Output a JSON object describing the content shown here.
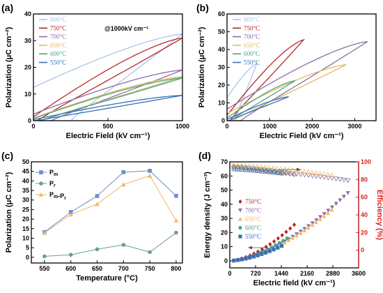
{
  "chart_data": [
    {
      "panel": "(a)",
      "type": "line",
      "subtype": "hysteresis-loop",
      "xlabel": "Electric Field (kV cm⁻¹)",
      "ylabel": "Polarization (μC cm⁻²)",
      "xlim": [
        0,
        1000
      ],
      "ylim": [
        0,
        40
      ],
      "xticks": [
        0,
        500,
        1000
      ],
      "yticks": [
        0,
        10,
        20,
        30,
        40
      ],
      "annotation": "@1000kV cm⁻¹",
      "legend_position": "top-left",
      "series": [
        {
          "name": "800°C",
          "color": "#a9c4ec",
          "Emax": 1000,
          "Pmax": 32.5,
          "Pr": 12.5,
          "coercive_width": 0.25
        },
        {
          "name": "750°C",
          "color": "#b5292f",
          "Emax": 1000,
          "Pmax": 31,
          "Pr": 1.5,
          "coercive_width": 0.03
        },
        {
          "name": "700°C",
          "color": "#8a6ea8",
          "Emax": 1000,
          "Pmax": 19,
          "Pr": 2.5,
          "coercive_width": 0.12
        },
        {
          "name": "650°C",
          "color": "#e6b85c",
          "Emax": 1000,
          "Pmax": 16.5,
          "Pr": 1,
          "coercive_width": 0.05
        },
        {
          "name": "600°C",
          "color": "#4aa588",
          "Emax": 1000,
          "Pmax": 16,
          "Pr": 0.8,
          "coercive_width": 0.05
        },
        {
          "name": "550°C",
          "color": "#3a6fb5",
          "Emax": 1000,
          "Pmax": 9.5,
          "Pr": 0.4,
          "coercive_width": 0.03
        }
      ]
    },
    {
      "panel": "(b)",
      "type": "line",
      "subtype": "hysteresis-loop",
      "xlabel": "Electric Field (kV cm⁻¹)",
      "ylabel": "Polarization (μC cm⁻²)",
      "xlim": [
        0,
        3500
      ],
      "ylim": [
        0,
        60
      ],
      "xticks": [
        0,
        1000,
        2000,
        3000
      ],
      "yticks": [
        0,
        10,
        20,
        30,
        40,
        50,
        60
      ],
      "legend_position": "top-left",
      "series": [
        {
          "name": "800°C",
          "color": "#a9c4ec",
          "Emax": 700,
          "Pmax": 32,
          "Pr": 13,
          "coercive_width": 0.25
        },
        {
          "name": "750°C",
          "color": "#b5292f",
          "Emax": 1800,
          "Pmax": 45.5,
          "Pr": 3,
          "coercive_width": 0.04
        },
        {
          "name": "700°C",
          "color": "#8a6ea8",
          "Emax": 3300,
          "Pmax": 44.5,
          "Pr": 6.5,
          "coercive_width": 0.1
        },
        {
          "name": "650°C",
          "color": "#e6b85c",
          "Emax": 2800,
          "Pmax": 31.5,
          "Pr": 4,
          "coercive_width": 0.05
        },
        {
          "name": "600°C",
          "color": "#4aa588",
          "Emax": 1600,
          "Pmax": 22.5,
          "Pr": 1.5,
          "coercive_width": 0.05
        },
        {
          "name": "550°C",
          "color": "#3a6fb5",
          "Emax": 1450,
          "Pmax": 13.5,
          "Pr": 0.7,
          "coercive_width": 0.03
        }
      ]
    },
    {
      "panel": "(c)",
      "type": "line",
      "xlabel": "Temperature (°C)",
      "ylabel": "Polarization (μC cm⁻²)",
      "x": [
        550,
        600,
        650,
        700,
        750,
        800
      ],
      "xlim": [
        525,
        812
      ],
      "ylim": [
        -3,
        50
      ],
      "xticks": [
        550,
        600,
        650,
        700,
        750,
        800
      ],
      "yticks": [
        0,
        5,
        10,
        15,
        20,
        25,
        30,
        35,
        40,
        45,
        50
      ],
      "legend_position": "top-left",
      "series": [
        {
          "name": "Pm",
          "marker": "square",
          "color": "#6b8fc7",
          "values": [
            13.2,
            23.7,
            32.1,
            44.6,
            45.3,
            32.2
          ]
        },
        {
          "name": "Pr",
          "marker": "circle",
          "color": "#6a9f8c",
          "values": [
            0.5,
            1.3,
            4.2,
            6.5,
            2.7,
            12.9
          ]
        },
        {
          "name": "Pm-Pr",
          "marker": "triangle",
          "color": "#f4b56b",
          "values": [
            12.8,
            22.4,
            27.9,
            38.1,
            42.7,
            19.3
          ]
        }
      ]
    },
    {
      "panel": "(d)",
      "type": "scatter",
      "xlabel": "Electric field (kV cm⁻¹)",
      "ylabel": "Energy density (J cm⁻³)",
      "y2label": "Efficiency (%)",
      "xlim": [
        0,
        3600
      ],
      "ylim": [
        -5,
        70
      ],
      "y2lim": [
        -20,
        100
      ],
      "xticks": [
        0,
        720,
        1440,
        2160,
        2880,
        3600
      ],
      "yticks": [
        0,
        10,
        20,
        30,
        40,
        50,
        60,
        70
      ],
      "y2ticks": [
        0,
        20,
        40,
        60,
        80,
        100
      ],
      "legend_position": "middle-left",
      "series": [
        {
          "name": "750°C",
          "marker": "diamond",
          "color": "#b5292f",
          "Emax": 1800,
          "Wmax": 25.5,
          "eff_start": 94,
          "eff_end": 86
        },
        {
          "name": "700°C",
          "marker": "triangle-down",
          "color": "#8a6ea8",
          "Emax": 3300,
          "Wmax": 48,
          "eff_start": 93,
          "eff_end": 79
        },
        {
          "name": "650°C",
          "marker": "triangle",
          "color": "#f4b56b",
          "Emax": 2850,
          "Wmax": 36,
          "eff_start": 97,
          "eff_end": 85
        },
        {
          "name": "600°C",
          "marker": "circle",
          "color": "#4aa588",
          "Emax": 1600,
          "Wmax": 16,
          "eff_start": 95,
          "eff_end": 88
        },
        {
          "name": "550°C",
          "marker": "square",
          "color": "#3a6fb5",
          "Emax": 1450,
          "Wmax": 10.5,
          "eff_start": 92,
          "eff_end": 87
        }
      ]
    }
  ]
}
